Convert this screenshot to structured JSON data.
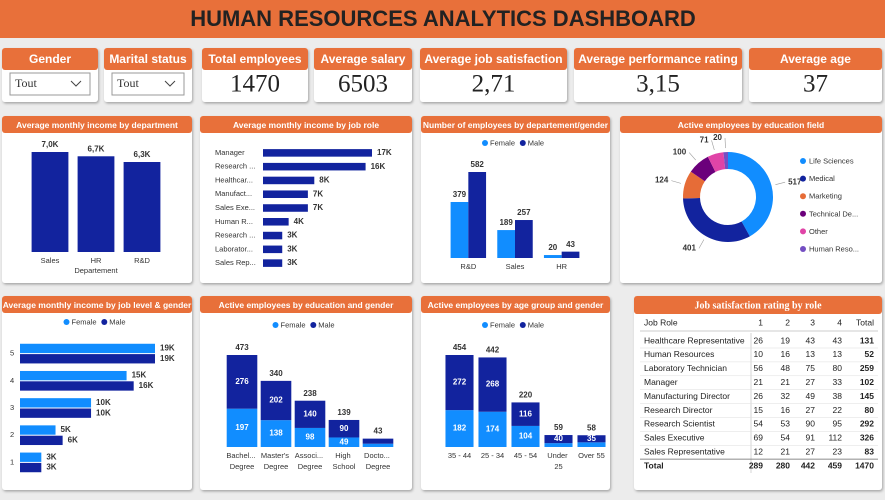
{
  "header": {
    "title": "HUMAN RESOURCES ANALYTICS DASHBOARD"
  },
  "filters": [
    {
      "label": "Gender",
      "value": "Tout"
    },
    {
      "label": "Marital status",
      "value": "Tout"
    }
  ],
  "kpis": [
    {
      "label": "Total employees",
      "value": "1470"
    },
    {
      "label": "Average salary",
      "value": "6503"
    },
    {
      "label": "Average job satisfaction",
      "value": "2,71"
    },
    {
      "label": "Average performance rating",
      "value": "3,15"
    },
    {
      "label": "Average age",
      "value": "37"
    }
  ],
  "chart_data": [
    {
      "type": "bar",
      "title": "Average monthly income by department",
      "categories": [
        "Sales",
        "HR",
        "R&D"
      ],
      "values": [
        7000,
        6700,
        6300
      ],
      "value_labels": [
        "7,0K",
        "6,7K",
        "6,3K"
      ],
      "color": "#12239E",
      "xlabel": "Departement"
    },
    {
      "type": "bar",
      "horizontal": true,
      "title": "Average monthly income by job role",
      "categories": [
        "Manager",
        "Research ...",
        "Healthcar...",
        "Manufact...",
        "Sales Exe...",
        "Human R...",
        "Research ...",
        "Laborator...",
        "Sales Rep..."
      ],
      "values": [
        17000,
        16000,
        8000,
        7000,
        7000,
        4000,
        3000,
        3000,
        3000
      ],
      "value_labels": [
        "17K",
        "16K",
        "8K",
        "7K",
        "7K",
        "4K",
        "3K",
        "3K",
        "3K"
      ],
      "color": "#12239E"
    },
    {
      "type": "bar",
      "title": "Number of employees by departement/gender",
      "categories": [
        "R&D",
        "Sales",
        "HR"
      ],
      "legend": "top",
      "series": [
        {
          "name": "Female",
          "color": "#118DFF",
          "values": [
            379,
            189,
            20
          ]
        },
        {
          "name": "Male",
          "color": "#12239E",
          "values": [
            582,
            257,
            43
          ]
        }
      ]
    },
    {
      "type": "pie",
      "donut": true,
      "title": "Active employees by education field",
      "legend": "right",
      "categories": [
        "Life Sciences",
        "Medical",
        "Marketing",
        "Technical De...",
        "Other",
        "Human Reso..."
      ],
      "values": [
        517,
        401,
        124,
        100,
        71,
        20
      ],
      "colors": [
        "#118DFF",
        "#12239E",
        "#E66C37",
        "#6B007B",
        "#E044A7",
        "#744EC2"
      ]
    },
    {
      "type": "bar",
      "horizontal": true,
      "title": "Average monthly income by job level & gender",
      "categories": [
        "5",
        "4",
        "3",
        "2",
        "1"
      ],
      "legend": "top",
      "series": [
        {
          "name": "Female",
          "color": "#118DFF",
          "values": [
            19000,
            15000,
            10000,
            5000,
            3000
          ],
          "value_labels": [
            "19K",
            "15K",
            "10K",
            "5K",
            "3K"
          ]
        },
        {
          "name": "Male",
          "color": "#12239E",
          "values": [
            19000,
            16000,
            10000,
            6000,
            3000
          ],
          "value_labels": [
            "19K",
            "16K",
            "10K",
            "6K",
            "3K"
          ]
        }
      ]
    },
    {
      "type": "bar",
      "stacked": true,
      "title": "Active employees by education and gender",
      "categories": [
        "Bachel... Degree",
        "Master's Degree",
        "Associ... Degree",
        "High School",
        "Docto... Degree"
      ],
      "legend": "top",
      "series": [
        {
          "name": "Female",
          "color": "#118DFF",
          "values": [
            197,
            138,
            98,
            49,
            17
          ]
        },
        {
          "name": "Male",
          "color": "#12239E",
          "values": [
            276,
            202,
            140,
            90,
            26
          ]
        }
      ],
      "totals": [
        473,
        340,
        238,
        139,
        43
      ]
    },
    {
      "type": "bar",
      "stacked": true,
      "title": "Active employees by age group and gender",
      "categories": [
        "35 - 44",
        "25 - 34",
        "45 - 54",
        "Under 25",
        "Over 55"
      ],
      "legend": "top",
      "series": [
        {
          "name": "Female",
          "color": "#118DFF",
          "values": [
            182,
            174,
            104,
            19,
            23
          ]
        },
        {
          "name": "Male",
          "color": "#12239E",
          "values": [
            272,
            268,
            116,
            40,
            35
          ]
        }
      ],
      "totals": [
        454,
        442,
        220,
        59,
        58
      ]
    }
  ],
  "table": {
    "title": "Job satisfaction rating by role",
    "columns": [
      "Job Role",
      "1",
      "2",
      "3",
      "4",
      "Total"
    ],
    "rows": [
      [
        "Healthcare Representative",
        26,
        19,
        43,
        43,
        131
      ],
      [
        "Human Resources",
        10,
        16,
        13,
        13,
        52
      ],
      [
        "Laboratory Technician",
        56,
        48,
        75,
        80,
        259
      ],
      [
        "Manager",
        21,
        21,
        27,
        33,
        102
      ],
      [
        "Manufacturing Director",
        26,
        32,
        49,
        38,
        145
      ],
      [
        "Research Director",
        15,
        16,
        27,
        22,
        80
      ],
      [
        "Research Scientist",
        54,
        53,
        90,
        95,
        292
      ],
      [
        "Sales Executive",
        69,
        54,
        91,
        112,
        326
      ],
      [
        "Sales Representative",
        12,
        21,
        27,
        23,
        83
      ],
      [
        "Total",
        289,
        280,
        442,
        459,
        1470
      ]
    ]
  }
}
